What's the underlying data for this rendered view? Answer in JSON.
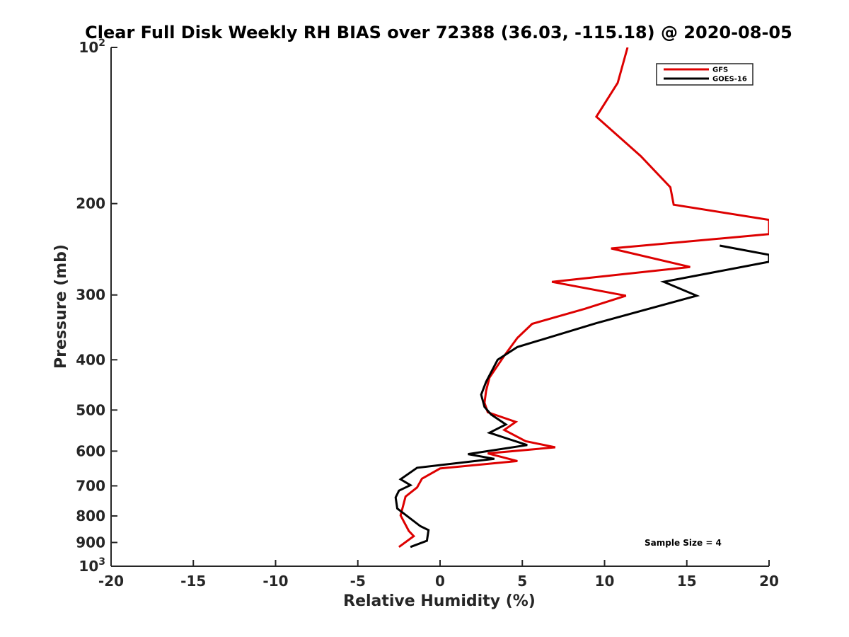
{
  "chart_data": {
    "type": "line",
    "title": "Clear Full Disk Weekly RH BIAS over 72388 (36.03, -115.18) @ 2020-08-05",
    "xlabel": "Relative Humidity (%)",
    "ylabel": "Pressure (mb)",
    "xlim": [
      -20,
      20
    ],
    "ylim": [
      100,
      1000
    ],
    "y_scale": "log",
    "y_reversed": true,
    "grid": false,
    "legend_position": "top-right",
    "annotation": "Sample Size = 4",
    "x_ticks": [
      {
        "value": -20,
        "label": "-20"
      },
      {
        "value": -15,
        "label": "-15"
      },
      {
        "value": -10,
        "label": "-10"
      },
      {
        "value": -5,
        "label": "-5"
      },
      {
        "value": 0,
        "label": "0"
      },
      {
        "value": 5,
        "label": "5"
      },
      {
        "value": 10,
        "label": "10"
      },
      {
        "value": 15,
        "label": "15"
      },
      {
        "value": 20,
        "label": "20"
      }
    ],
    "y_ticks": [
      {
        "value": 100,
        "label": "10",
        "sup": "2"
      },
      {
        "value": 200,
        "label": "200",
        "sup": ""
      },
      {
        "value": 300,
        "label": "300",
        "sup": ""
      },
      {
        "value": 400,
        "label": "400",
        "sup": ""
      },
      {
        "value": 500,
        "label": "500",
        "sup": ""
      },
      {
        "value": 600,
        "label": "600",
        "sup": ""
      },
      {
        "value": 700,
        "label": "700",
        "sup": ""
      },
      {
        "value": 800,
        "label": "800",
        "sup": ""
      },
      {
        "value": 900,
        "label": "900",
        "sup": ""
      },
      {
        "value": 1000,
        "label": "10",
        "sup": "3"
      }
    ],
    "series": [
      {
        "name": "GFS",
        "color": "#dd0000",
        "points": [
          [
            11.4,
            100
          ],
          [
            10.8,
            117
          ],
          [
            9.5,
            136
          ],
          [
            12.2,
            162
          ],
          [
            14.0,
            186
          ],
          [
            14.2,
            201
          ],
          [
            20.0,
            215
          ],
          [
            20.0,
            229
          ],
          [
            10.4,
            244
          ],
          [
            15.2,
            265
          ],
          [
            6.8,
            283
          ],
          [
            11.3,
            301
          ],
          [
            8.8,
            319
          ],
          [
            5.6,
            341
          ],
          [
            4.7,
            363
          ],
          [
            3.9,
            393
          ],
          [
            3.0,
            433
          ],
          [
            2.8,
            459
          ],
          [
            2.7,
            484
          ],
          [
            2.9,
            505
          ],
          [
            4.6,
            527
          ],
          [
            3.9,
            546
          ],
          [
            5.2,
            574
          ],
          [
            7.0,
            590
          ],
          [
            2.9,
            606
          ],
          [
            4.7,
            627
          ],
          [
            0.0,
            648
          ],
          [
            -1.1,
            678
          ],
          [
            -1.4,
            705
          ],
          [
            -2.1,
            734
          ],
          [
            -2.4,
            798
          ],
          [
            -1.9,
            855
          ],
          [
            -1.6,
            875
          ],
          [
            -2.5,
            918
          ]
        ]
      },
      {
        "name": "GOES-16",
        "color": "#000000",
        "points": [
          [
            20.0,
            251
          ],
          [
            17.0,
            241
          ],
          [
            20.0,
            251
          ],
          [
            20.0,
            259
          ],
          [
            13.6,
            283
          ],
          [
            15.6,
            301
          ],
          [
            9.5,
            340
          ],
          [
            4.7,
            378
          ],
          [
            3.5,
            400
          ],
          [
            2.8,
            441
          ],
          [
            2.5,
            467
          ],
          [
            2.7,
            493
          ],
          [
            3.1,
            510
          ],
          [
            4.0,
            533
          ],
          [
            3.0,
            553
          ],
          [
            4.2,
            569
          ],
          [
            5.3,
            584
          ],
          [
            1.7,
            608
          ],
          [
            3.3,
            621
          ],
          [
            -1.4,
            646
          ],
          [
            -2.4,
            680
          ],
          [
            -1.8,
            698
          ],
          [
            -2.5,
            715
          ],
          [
            -2.7,
            737
          ],
          [
            -2.6,
            774
          ],
          [
            -1.2,
            837
          ],
          [
            -0.7,
            852
          ],
          [
            -0.8,
            893
          ],
          [
            -1.8,
            918
          ]
        ]
      }
    ]
  }
}
